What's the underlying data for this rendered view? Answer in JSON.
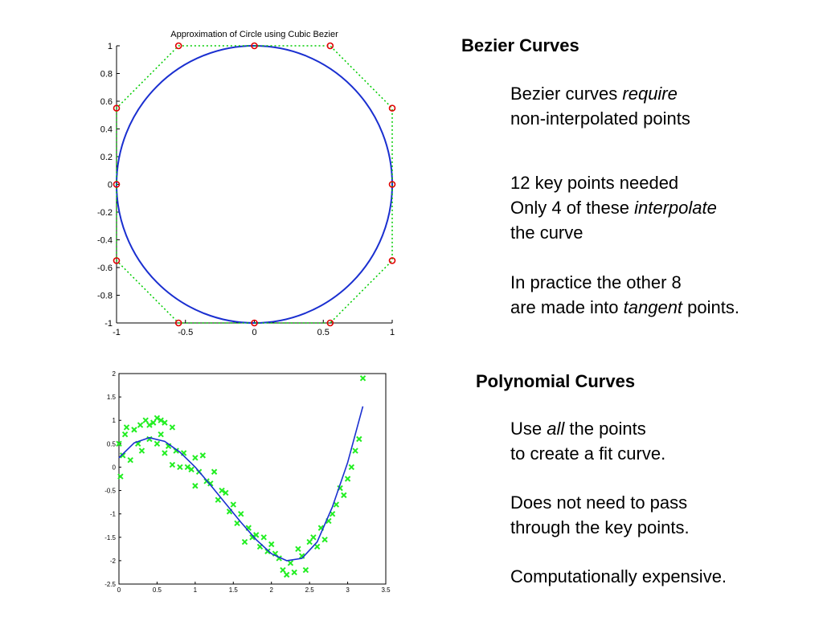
{
  "slide": {
    "bezier_heading": "Bezier Curves",
    "bezier_p1": [
      {
        "parts": [
          {
            "t": "Bezier curves "
          },
          {
            "t": "require",
            "i": true
          }
        ]
      },
      {
        "parts": [
          {
            "t": "non-interpolated points"
          }
        ]
      }
    ],
    "bezier_p2": [
      {
        "parts": [
          {
            "t": "12 key points needed"
          }
        ]
      },
      {
        "parts": [
          {
            "t": "Only 4 of these "
          },
          {
            "t": "interpolate",
            "i": true
          }
        ]
      },
      {
        "parts": [
          {
            "t": "the curve"
          }
        ]
      }
    ],
    "bezier_p3": [
      {
        "parts": [
          {
            "t": "In practice the other 8"
          }
        ]
      },
      {
        "parts": [
          {
            "t": "are made into "
          },
          {
            "t": "tangent",
            "i": true
          },
          {
            "t": " points."
          }
        ]
      }
    ],
    "poly_heading": "Polynomial Curves",
    "poly_p1": [
      {
        "parts": [
          {
            "t": "Use "
          },
          {
            "t": "all",
            "i": true
          },
          {
            "t": " the points"
          }
        ]
      },
      {
        "parts": [
          {
            "t": "to create a fit curve."
          }
        ]
      }
    ],
    "poly_p2": [
      {
        "parts": [
          {
            "t": "Does not need to pass"
          }
        ]
      },
      {
        "parts": [
          {
            "t": "through the key points."
          }
        ]
      }
    ],
    "poly_p3": [
      {
        "parts": [
          {
            "t": "Computationally expensive."
          }
        ]
      }
    ]
  },
  "chart_data": [
    {
      "type": "line",
      "title": "Approximation of Circle using Cubic Bezier",
      "xlim": [
        -1,
        1
      ],
      "ylim": [
        -1,
        1
      ],
      "xticks": [
        "-1",
        "-0.5",
        "0",
        "0.5",
        "1"
      ],
      "xtick_values": [
        -1,
        -0.5,
        0,
        0.5,
        1
      ],
      "yticks": [
        "1",
        "0.8",
        "0.6",
        "0.4",
        "0.2",
        "0",
        "-0.2",
        "-0.4",
        "-0.6",
        "-0.8",
        "-1"
      ],
      "ytick_values": [
        1,
        0.8,
        0.6,
        0.4,
        0.2,
        0,
        -0.2,
        -0.4,
        -0.6,
        -0.8,
        -1
      ],
      "grid": false,
      "colors": {
        "curve": "#1a2fd0",
        "control_points": "#e00000",
        "control_polygon": "#00cc00"
      },
      "series": [
        {
          "kind": "circle",
          "center": [
            0,
            0
          ],
          "radius": 1
        },
        {
          "kind": "control_points",
          "x": [
            0,
            0.55,
            1,
            1,
            1,
            0.55,
            0,
            -0.55,
            -1,
            -1,
            -1,
            -0.55
          ],
          "y": [
            1,
            1,
            0.55,
            0,
            -0.55,
            -1,
            -1,
            -1,
            -0.55,
            0,
            0.55,
            1
          ]
        }
      ]
    },
    {
      "type": "scatter",
      "xlim": [
        0,
        3.5
      ],
      "ylim": [
        -2.5,
        2
      ],
      "xticks": [
        "0",
        "0.5",
        "1",
        "1.5",
        "2",
        "2.5",
        "3",
        "3.5"
      ],
      "xtick_values": [
        0,
        0.5,
        1,
        1.5,
        2,
        2.5,
        3,
        3.5
      ],
      "yticks": [
        "2",
        "1.5",
        "1",
        "0.5",
        "0",
        "-0.5",
        "-1",
        "-1.5",
        "-2",
        "-2.5"
      ],
      "ytick_values": [
        2,
        1.5,
        1,
        0.5,
        0,
        -0.5,
        -1,
        -1.5,
        -2,
        -2.5
      ],
      "grid": false,
      "colors": {
        "points": "#22ee22",
        "fit": "#1a2fd0"
      },
      "fit": {
        "x": [
          0,
          0.2,
          0.4,
          0.6,
          0.8,
          1.0,
          1.2,
          1.4,
          1.6,
          1.8,
          2.0,
          2.2,
          2.4,
          2.6,
          2.8,
          3.0,
          3.2
        ],
        "y": [
          0.2,
          0.52,
          0.63,
          0.55,
          0.32,
          0.0,
          -0.38,
          -0.78,
          -1.18,
          -1.55,
          -1.85,
          -2.0,
          -1.95,
          -1.6,
          -0.85,
          0.1,
          1.3
        ]
      },
      "series": [
        {
          "name": "",
          "x": [
            0.0,
            0.02,
            0.05,
            0.08,
            0.1,
            0.15,
            0.2,
            0.25,
            0.28,
            0.3,
            0.35,
            0.4,
            0.4,
            0.45,
            0.5,
            0.5,
            0.55,
            0.55,
            0.6,
            0.6,
            0.65,
            0.7,
            0.7,
            0.75,
            0.8,
            0.85,
            0.9,
            0.95,
            1.0,
            1.0,
            1.05,
            1.1,
            1.15,
            1.2,
            1.25,
            1.3,
            1.35,
            1.4,
            1.45,
            1.5,
            1.55,
            1.6,
            1.65,
            1.7,
            1.75,
            1.8,
            1.85,
            1.9,
            1.95,
            2.0,
            2.05,
            2.1,
            2.15,
            2.2,
            2.25,
            2.3,
            2.35,
            2.4,
            2.45,
            2.5,
            2.55,
            2.6,
            2.65,
            2.7,
            2.75,
            2.8,
            2.85,
            2.9,
            2.95,
            3.0,
            3.05,
            3.1,
            3.15,
            3.2
          ],
          "y": [
            0.5,
            -0.2,
            0.25,
            0.7,
            0.85,
            0.15,
            0.8,
            0.5,
            0.9,
            0.35,
            1.0,
            0.6,
            0.9,
            0.95,
            1.05,
            0.5,
            0.7,
            1.0,
            0.3,
            0.95,
            0.45,
            0.85,
            0.05,
            0.35,
            0.0,
            0.3,
            0.0,
            -0.05,
            0.2,
            -0.4,
            -0.1,
            0.25,
            -0.3,
            -0.35,
            -0.1,
            -0.7,
            -0.5,
            -0.55,
            -0.95,
            -0.8,
            -1.2,
            -1.0,
            -1.6,
            -1.3,
            -1.5,
            -1.45,
            -1.7,
            -1.5,
            -1.8,
            -1.65,
            -1.85,
            -1.95,
            -2.2,
            -2.3,
            -2.05,
            -2.25,
            -1.75,
            -1.9,
            -2.2,
            -1.6,
            -1.5,
            -1.7,
            -1.3,
            -1.55,
            -1.15,
            -1.0,
            -0.8,
            -0.45,
            -0.6,
            -0.25,
            0.0,
            0.35,
            0.6,
            1.9
          ]
        }
      ]
    }
  ]
}
